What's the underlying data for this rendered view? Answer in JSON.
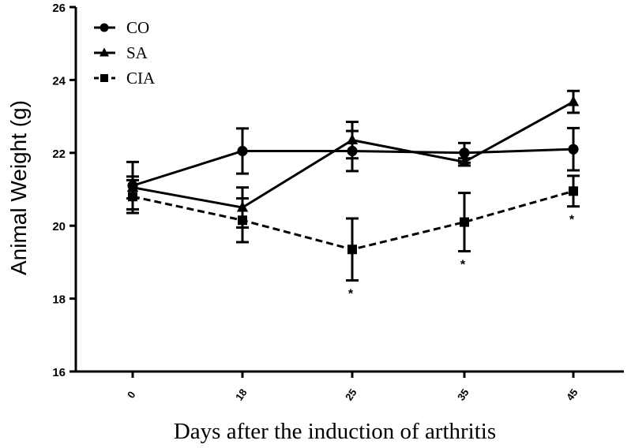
{
  "chart_data": {
    "type": "line",
    "title": "",
    "xlabel": "Days after the induction of arthritis",
    "ylabel": "Animal Weight (g)",
    "categories": [
      "0",
      "18",
      "25",
      "35",
      "45"
    ],
    "ylim": [
      16,
      26
    ],
    "yticks": [
      16,
      18,
      20,
      22,
      24,
      26
    ],
    "grid": false,
    "legend_position": "top-left",
    "series": [
      {
        "name": "CO",
        "marker": "circle",
        "linestyle": "solid",
        "values": [
          21.1,
          22.05,
          22.05,
          22.0,
          22.1
        ],
        "error": [
          0.65,
          0.62,
          0.55,
          0.27,
          0.58
        ]
      },
      {
        "name": "SA",
        "marker": "triangle",
        "linestyle": "solid",
        "values": [
          21.05,
          20.5,
          22.35,
          21.75,
          23.4
        ],
        "error": [
          0.3,
          0.55,
          0.5,
          0.1,
          0.3
        ]
      },
      {
        "name": "CIA",
        "marker": "square",
        "linestyle": "dashed",
        "values": [
          20.8,
          20.15,
          19.35,
          20.1,
          20.95
        ],
        "error": [
          0.45,
          0.6,
          0.85,
          0.8,
          0.42
        ]
      }
    ],
    "annotations": [
      {
        "text": "*",
        "category": "25",
        "series": "CIA"
      },
      {
        "text": "*",
        "category": "35",
        "series": "CIA"
      },
      {
        "text": "*",
        "category": "45",
        "series": "CIA"
      }
    ]
  }
}
